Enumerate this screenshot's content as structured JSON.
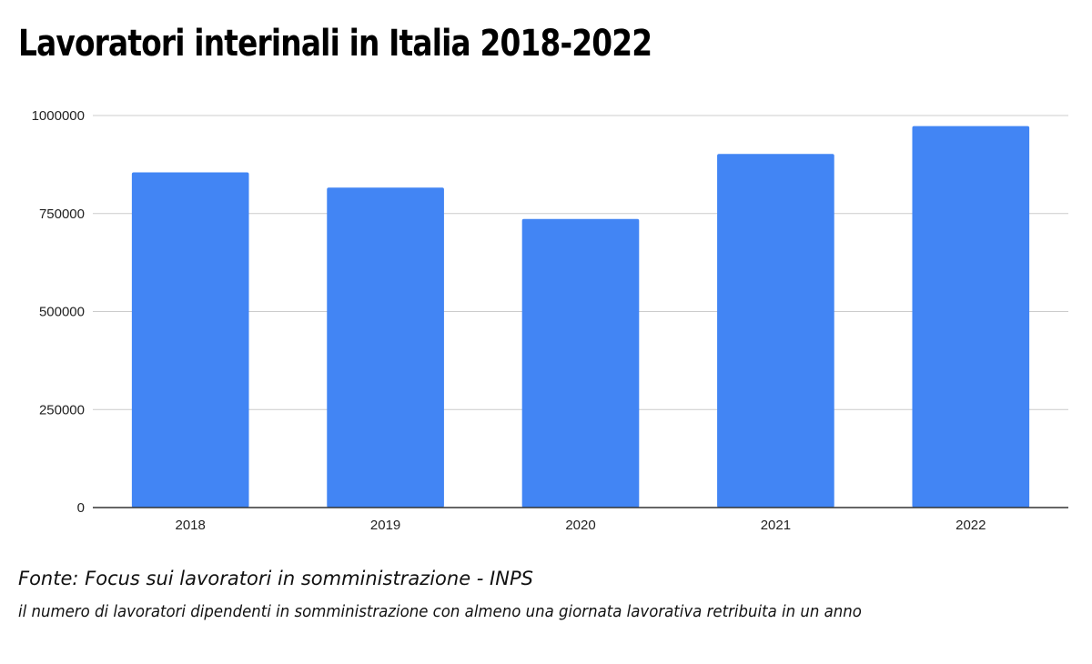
{
  "header": {
    "title": "Lavoratori interinali in Italia 2018-2022"
  },
  "footer": {
    "source": "Fonte: Focus sui lavoratori in somministrazione - INPS",
    "note": "il numero di lavoratori dipendenti in somministrazione con almeno una giornata lavorativa retribuita in un anno"
  },
  "colors": {
    "bar": "#4285f4",
    "grid": "#cccccc",
    "axis": "#333333"
  },
  "chart_data": {
    "type": "bar",
    "title": "Lavoratori interinali in Italia 2018-2022",
    "xlabel": "",
    "ylabel": "",
    "categories": [
      "2018",
      "2019",
      "2020",
      "2021",
      "2022"
    ],
    "values": [
      855000,
      816000,
      736000,
      902000,
      973000
    ],
    "ylim": [
      0,
      1000000
    ],
    "yticks": [
      0,
      250000,
      500000,
      750000,
      1000000
    ],
    "ytick_labels": [
      "0",
      "250000",
      "500000",
      "750000",
      "1000000"
    ],
    "grid": true,
    "legend": "none"
  }
}
